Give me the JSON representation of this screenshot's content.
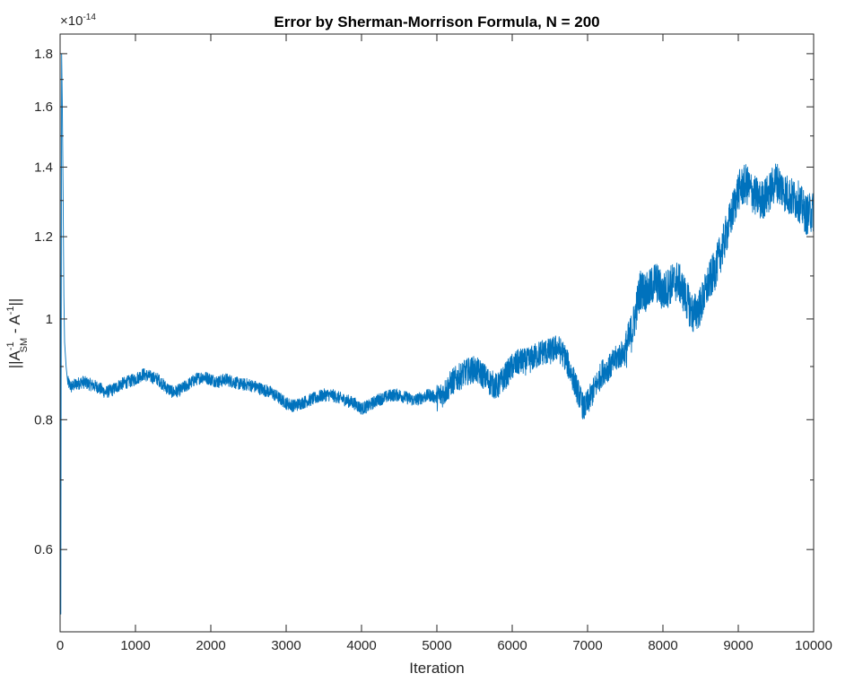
{
  "chart_data": {
    "type": "line",
    "title": "Error by Sherman-Morrison Formula, N = 200",
    "xlabel": "Iteration",
    "ylabel": {
      "prefix": "||A",
      "sup1": "-1",
      "sub1": "SM",
      "middle": " - A",
      "sup2": "-1",
      "suffix": "||"
    },
    "y_exponent": {
      "base": "×10",
      "power": "-14"
    },
    "xlim": [
      0,
      10000
    ],
    "ylim": [
      0.5,
      1.88
    ],
    "yscale": "log",
    "x_ticks": [
      0,
      1000,
      2000,
      3000,
      4000,
      5000,
      6000,
      7000,
      8000,
      9000,
      10000
    ],
    "x_tick_labels": [
      "0",
      "1000",
      "2000",
      "3000",
      "4000",
      "5000",
      "6000",
      "7000",
      "8000",
      "9000",
      "10000"
    ],
    "y_major_ticks": [
      0.6,
      0.8,
      1.0,
      1.2,
      1.4,
      1.6,
      1.8
    ],
    "y_tick_labels": [
      "0.6",
      "0.8",
      "1",
      "1.2",
      "1.4",
      "1.6",
      "1.8"
    ],
    "y_minor_ticks": [
      0.5,
      0.7,
      0.9,
      1.1,
      1.3,
      1.5,
      1.7
    ],
    "grid": false,
    "line_color": "#0072BD",
    "series": [
      {
        "x": [
          0,
          10,
          20,
          30,
          40,
          50,
          60,
          80,
          100,
          150,
          200,
          300,
          400,
          500,
          600,
          700,
          800,
          900,
          1000,
          1100,
          1200,
          1300,
          1400,
          1500,
          1600,
          1700,
          1800,
          1900,
          2000,
          2100,
          2200,
          2300,
          2400,
          2500,
          2600,
          2700,
          2800,
          2900,
          3000,
          3100,
          3200,
          3300,
          3400,
          3500,
          3600,
          3700,
          3800,
          3900,
          4000,
          4100,
          4200,
          4300,
          4400,
          4500,
          4600,
          4700,
          4800,
          4900,
          5000,
          5100,
          5200,
          5300,
          5400,
          5500,
          5600,
          5700,
          5800,
          5900,
          6000,
          6100,
          6200,
          6300,
          6400,
          6500,
          6600,
          6700,
          6800,
          6900,
          6950,
          7000,
          7100,
          7200,
          7300,
          7400,
          7500,
          7600,
          7700,
          7800,
          7900,
          8000,
          8100,
          8200,
          8300,
          8400,
          8500,
          8600,
          8700,
          8800,
          8900,
          9000,
          9100,
          9200,
          9300,
          9400,
          9500,
          9600,
          9700,
          9800,
          9900,
          10000
        ],
        "y": [
          1.85,
          0.52,
          1.8,
          1.6,
          1.3,
          1.05,
          0.95,
          0.9,
          0.87,
          0.86,
          0.865,
          0.87,
          0.865,
          0.86,
          0.85,
          0.855,
          0.865,
          0.87,
          0.875,
          0.885,
          0.88,
          0.875,
          0.86,
          0.85,
          0.855,
          0.865,
          0.875,
          0.88,
          0.875,
          0.87,
          0.875,
          0.87,
          0.865,
          0.865,
          0.86,
          0.855,
          0.85,
          0.84,
          0.83,
          0.825,
          0.83,
          0.835,
          0.84,
          0.845,
          0.845,
          0.84,
          0.835,
          0.83,
          0.82,
          0.825,
          0.835,
          0.84,
          0.845,
          0.845,
          0.84,
          0.835,
          0.84,
          0.845,
          0.84,
          0.85,
          0.87,
          0.88,
          0.89,
          0.895,
          0.885,
          0.87,
          0.86,
          0.88,
          0.9,
          0.91,
          0.91,
          0.92,
          0.93,
          0.93,
          0.94,
          0.92,
          0.88,
          0.84,
          0.82,
          0.83,
          0.86,
          0.89,
          0.9,
          0.92,
          0.93,
          0.98,
          1.07,
          1.06,
          1.09,
          1.06,
          1.08,
          1.09,
          1.05,
          1.01,
          1.03,
          1.08,
          1.12,
          1.18,
          1.25,
          1.33,
          1.35,
          1.32,
          1.3,
          1.32,
          1.36,
          1.33,
          1.31,
          1.3,
          1.26,
          1.27
        ]
      }
    ]
  }
}
